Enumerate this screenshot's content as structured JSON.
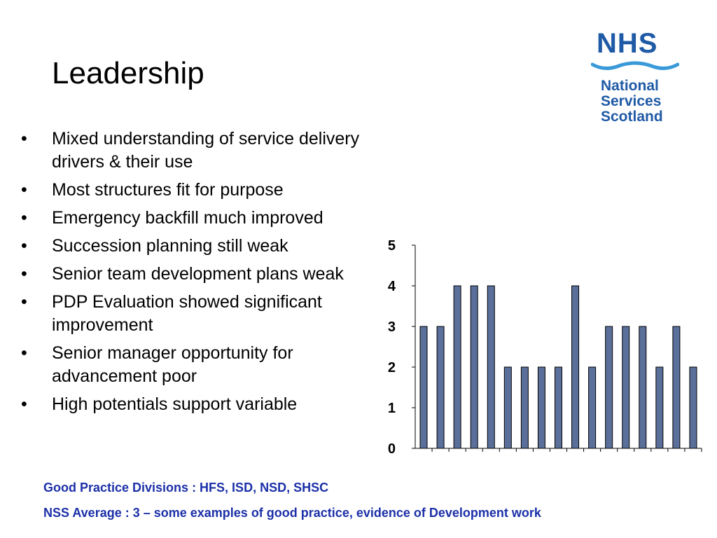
{
  "title": "Leadership",
  "logo": {
    "nhs": "NHS",
    "line1": "National",
    "line2": "Services",
    "line3": "Scotland"
  },
  "bullets": [
    "Mixed understanding of service delivery drivers & their use",
    "Most structures fit for purpose",
    "Emergency backfill much improved",
    "Succession planning still weak",
    "Senior team development plans weak",
    "PDP Evaluation showed significant improvement",
    "Senior manager opportunity for advancement poor",
    "High potentials support variable"
  ],
  "notes": {
    "good_practice": "Good Practice Divisions : HFS, ISD, NSD, SHSC",
    "average": "NSS Average : 3 – some examples of good practice, evidence of Development work"
  },
  "chart_data": {
    "type": "bar",
    "values": [
      3,
      3,
      4,
      4,
      4,
      2,
      2,
      2,
      2,
      4,
      2,
      3,
      3,
      3,
      2,
      3,
      2
    ],
    "ylim": [
      0,
      5
    ],
    "yticks": [
      "0",
      "1",
      "2",
      "3",
      "4",
      "5"
    ],
    "bar_color": "#5a6f9a",
    "title": "",
    "xlabel": "",
    "ylabel": ""
  },
  "colors": {
    "logo_blue": "#1f5aa6",
    "note_blue": "#1c30a8"
  }
}
